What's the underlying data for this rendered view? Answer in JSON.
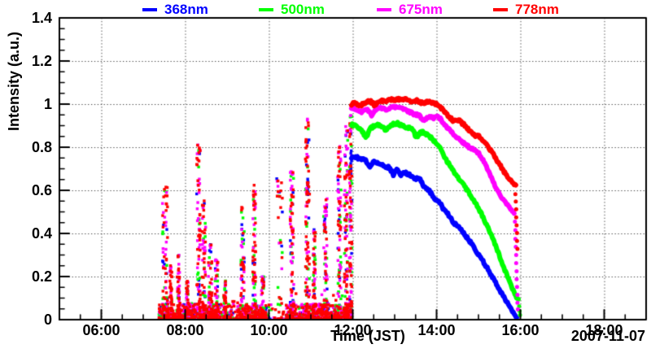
{
  "chart_data": {
    "type": "scatter",
    "xlabel": "Time (JST)",
    "ylabel": "Intensity (a.u.)",
    "date_label": "2007-11-07",
    "grid": {
      "show": true,
      "style": "dotted",
      "color": "#444444"
    },
    "legend": {
      "position": "top"
    },
    "x_axis": {
      "range_hours": [
        5,
        19
      ],
      "minor_step_hours": 0.5,
      "major_ticks": [
        {
          "h": 6,
          "label": "06:00"
        },
        {
          "h": 8,
          "label": "08:00"
        },
        {
          "h": 10,
          "label": "10:00"
        },
        {
          "h": 12,
          "label": "12:00"
        },
        {
          "h": 14,
          "label": "14:00"
        },
        {
          "h": 16,
          "label": "16:00"
        },
        {
          "h": 18,
          "label": "18:00"
        }
      ]
    },
    "y_axis": {
      "range": [
        0,
        1.4
      ],
      "minor_step": 0.05,
      "major_ticks": [
        {
          "v": 0,
          "label": "0"
        },
        {
          "v": 0.2,
          "label": "0.2"
        },
        {
          "v": 0.4,
          "label": "0.4"
        },
        {
          "v": 0.6,
          "label": "0.6"
        },
        {
          "v": 0.8,
          "label": "0.8"
        },
        {
          "v": 1,
          "label": "1"
        },
        {
          "v": 1.2,
          "label": "1.2"
        },
        {
          "v": 1.4,
          "label": "1.4"
        }
      ]
    },
    "series": [
      {
        "name": "368nm",
        "color": "#0000ff",
        "curve": [
          [
            11.97,
            0.75
          ],
          [
            12.05,
            0.755
          ],
          [
            12.15,
            0.748
          ],
          [
            12.3,
            0.74
          ],
          [
            12.42,
            0.705
          ],
          [
            12.5,
            0.735
          ],
          [
            12.62,
            0.725
          ],
          [
            12.75,
            0.712
          ],
          [
            12.88,
            0.705
          ],
          [
            12.97,
            0.672
          ],
          [
            13.05,
            0.7
          ],
          [
            13.15,
            0.672
          ],
          [
            13.25,
            0.682
          ],
          [
            13.38,
            0.67
          ],
          [
            13.5,
            0.655
          ],
          [
            13.62,
            0.648
          ],
          [
            13.72,
            0.61
          ],
          [
            13.8,
            0.605
          ],
          [
            13.92,
            0.57
          ],
          [
            14.0,
            0.552
          ],
          [
            14.08,
            0.542
          ],
          [
            14.17,
            0.51
          ],
          [
            14.28,
            0.488
          ],
          [
            14.4,
            0.452
          ],
          [
            14.47,
            0.44
          ],
          [
            14.55,
            0.43
          ],
          [
            14.63,
            0.405
          ],
          [
            14.75,
            0.375
          ],
          [
            14.88,
            0.34
          ],
          [
            15.0,
            0.302
          ],
          [
            15.12,
            0.268
          ],
          [
            15.25,
            0.225
          ],
          [
            15.38,
            0.18
          ],
          [
            15.5,
            0.14
          ],
          [
            15.62,
            0.1
          ],
          [
            15.75,
            0.058
          ],
          [
            15.85,
            0.022
          ],
          [
            15.92,
            0.005
          ]
        ],
        "tail": []
      },
      {
        "name": "500nm",
        "color": "#00ff00",
        "curve": [
          [
            11.97,
            0.905
          ],
          [
            12.08,
            0.898
          ],
          [
            12.2,
            0.882
          ],
          [
            12.32,
            0.845
          ],
          [
            12.42,
            0.888
          ],
          [
            12.55,
            0.905
          ],
          [
            12.68,
            0.898
          ],
          [
            12.8,
            0.878
          ],
          [
            12.92,
            0.905
          ],
          [
            13.05,
            0.912
          ],
          [
            13.18,
            0.898
          ],
          [
            13.3,
            0.892
          ],
          [
            13.42,
            0.888
          ],
          [
            13.52,
            0.842
          ],
          [
            13.62,
            0.872
          ],
          [
            13.75,
            0.862
          ],
          [
            13.88,
            0.842
          ],
          [
            14.0,
            0.818
          ],
          [
            14.12,
            0.788
          ],
          [
            14.22,
            0.742
          ],
          [
            14.33,
            0.712
          ],
          [
            14.45,
            0.672
          ],
          [
            14.55,
            0.648
          ],
          [
            14.67,
            0.618
          ],
          [
            14.78,
            0.588
          ],
          [
            14.9,
            0.548
          ],
          [
            15.0,
            0.518
          ],
          [
            15.12,
            0.472
          ],
          [
            15.25,
            0.415
          ],
          [
            15.38,
            0.358
          ],
          [
            15.5,
            0.298
          ],
          [
            15.62,
            0.235
          ],
          [
            15.75,
            0.168
          ],
          [
            15.87,
            0.118
          ],
          [
            15.95,
            0.092
          ]
        ],
        "tail": [
          [
            15.97,
            0.062
          ],
          [
            15.98,
            0.04
          ],
          [
            15.99,
            0.022
          ]
        ]
      },
      {
        "name": "675nm",
        "color": "#ff00ff",
        "curve": [
          [
            11.97,
            0.982
          ],
          [
            12.1,
            0.972
          ],
          [
            12.22,
            0.962
          ],
          [
            12.35,
            0.975
          ],
          [
            12.45,
            0.945
          ],
          [
            12.58,
            0.985
          ],
          [
            12.7,
            0.982
          ],
          [
            12.82,
            0.972
          ],
          [
            12.95,
            0.988
          ],
          [
            13.08,
            0.982
          ],
          [
            13.2,
            0.978
          ],
          [
            13.32,
            0.968
          ],
          [
            13.45,
            0.955
          ],
          [
            13.58,
            0.948
          ],
          [
            13.68,
            0.925
          ],
          [
            13.8,
            0.942
          ],
          [
            13.92,
            0.935
          ],
          [
            14.02,
            0.948
          ],
          [
            14.12,
            0.925
          ],
          [
            14.22,
            0.898
          ],
          [
            14.33,
            0.878
          ],
          [
            14.45,
            0.852
          ],
          [
            14.58,
            0.828
          ],
          [
            14.7,
            0.812
          ],
          [
            14.82,
            0.795
          ],
          [
            14.92,
            0.785
          ],
          [
            15.02,
            0.768
          ],
          [
            15.12,
            0.738
          ],
          [
            15.25,
            0.682
          ],
          [
            15.38,
            0.625
          ],
          [
            15.5,
            0.585
          ],
          [
            15.62,
            0.548
          ],
          [
            15.75,
            0.518
          ],
          [
            15.85,
            0.498
          ]
        ],
        "tail": [
          [
            15.87,
            0.455
          ],
          [
            15.88,
            0.415
          ],
          [
            15.88,
            0.375
          ],
          [
            15.89,
            0.338
          ],
          [
            15.9,
            0.3
          ],
          [
            15.9,
            0.262
          ],
          [
            15.91,
            0.225
          ],
          [
            15.91,
            0.188
          ],
          [
            15.92,
            0.152
          ],
          [
            15.93,
            0.115
          ],
          [
            15.93,
            0.078
          ],
          [
            15.94,
            0.048
          ]
        ]
      },
      {
        "name": "778nm",
        "color": "#ff0000",
        "curve": [
          [
            11.97,
            1.0
          ],
          [
            12.08,
            1.005
          ],
          [
            12.18,
            0.992
          ],
          [
            12.3,
            1.008
          ],
          [
            12.42,
            1.015
          ],
          [
            12.52,
            0.995
          ],
          [
            12.65,
            1.018
          ],
          [
            12.78,
            1.012
          ],
          [
            12.9,
            1.022
          ],
          [
            13.02,
            1.018
          ],
          [
            13.15,
            1.025
          ],
          [
            13.28,
            1.022
          ],
          [
            13.4,
            1.012
          ],
          [
            13.52,
            1.018
          ],
          [
            13.65,
            1.005
          ],
          [
            13.78,
            1.01
          ],
          [
            13.9,
            1.005
          ],
          [
            14.02,
            0.998
          ],
          [
            14.15,
            0.975
          ],
          [
            14.28,
            0.945
          ],
          [
            14.4,
            0.922
          ],
          [
            14.52,
            0.928
          ],
          [
            14.65,
            0.905
          ],
          [
            14.78,
            0.878
          ],
          [
            14.9,
            0.858
          ],
          [
            15.02,
            0.848
          ],
          [
            15.12,
            0.828
          ],
          [
            15.25,
            0.795
          ],
          [
            15.38,
            0.758
          ],
          [
            15.5,
            0.722
          ],
          [
            15.62,
            0.682
          ],
          [
            15.75,
            0.648
          ],
          [
            15.85,
            0.625
          ],
          [
            15.9,
            0.618
          ]
        ],
        "tail": [
          [
            15.88,
            0.582
          ],
          [
            15.89,
            0.548
          ],
          [
            15.9,
            0.512
          ],
          [
            15.9,
            0.475
          ],
          [
            15.91,
            0.438
          ],
          [
            15.92,
            0.402
          ],
          [
            15.92,
            0.365
          ],
          [
            15.93,
            0.328
          ]
        ]
      }
    ],
    "noise": {
      "t_start": 7.37,
      "t_end": 11.98,
      "color_weights": [
        0.09,
        0.18,
        0.27,
        0.46
      ],
      "baseline": {
        "y_max": 0.07,
        "points": 1500,
        "gaps": [
          [
            8.85,
            9.3,
            0.5
          ],
          [
            9.95,
            10.45,
            0.3
          ]
        ]
      },
      "spikes": [
        {
          "t": 7.52,
          "w": 0.12,
          "peak": 0.63
        },
        {
          "t": 7.66,
          "w": 0.05,
          "peak": 0.25
        },
        {
          "t": 7.84,
          "w": 0.06,
          "peak": 0.3
        },
        {
          "t": 8.05,
          "w": 0.05,
          "peak": 0.18
        },
        {
          "t": 8.32,
          "w": 0.09,
          "peak": 0.83
        },
        {
          "t": 8.45,
          "w": 0.09,
          "peak": 0.55
        },
        {
          "t": 8.6,
          "w": 0.09,
          "peak": 0.35
        },
        {
          "t": 8.75,
          "w": 0.07,
          "peak": 0.28
        },
        {
          "t": 8.95,
          "w": 0.06,
          "peak": 0.18
        },
        {
          "t": 9.37,
          "w": 0.08,
          "peak": 0.52
        },
        {
          "t": 9.65,
          "w": 0.07,
          "peak": 0.62
        },
        {
          "t": 9.85,
          "w": 0.06,
          "peak": 0.2
        },
        {
          "t": 10.25,
          "w": 0.14,
          "peak": 0.66,
          "sparse": true
        },
        {
          "t": 10.55,
          "w": 0.09,
          "peak": 0.74
        },
        {
          "t": 10.92,
          "w": 0.1,
          "peak": 0.93
        },
        {
          "t": 11.08,
          "w": 0.06,
          "peak": 0.42
        },
        {
          "t": 11.35,
          "w": 0.09,
          "peak": 0.56
        },
        {
          "t": 11.68,
          "w": 0.08,
          "peak": 0.82
        },
        {
          "t": 11.84,
          "w": 0.08,
          "peak": 0.9
        },
        {
          "t": 11.95,
          "w": 0.06,
          "peak": 0.95
        }
      ],
      "blue_segments": [
        {
          "t": 10.93,
          "y0": 0.58,
          "y1": 0.66
        },
        {
          "t": 11.33,
          "y0": 0.42,
          "y1": 0.47
        },
        {
          "t": 11.96,
          "y0": 0.7,
          "y1": 0.78
        }
      ]
    }
  }
}
